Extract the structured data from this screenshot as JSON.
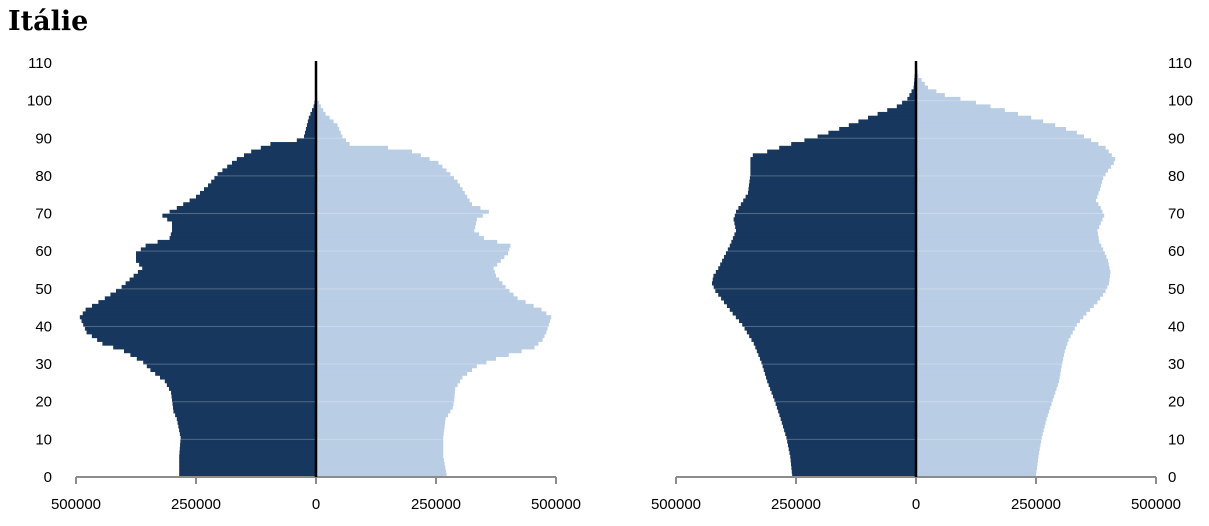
{
  "title": "Itálie",
  "chart_data": [
    {
      "type": "bar",
      "orientation": "horizontal",
      "layout": "population-pyramid",
      "age_step": 1,
      "x_ticks": [
        "500000",
        "250000",
        "0",
        "250000",
        "500000"
      ],
      "y_ticks": [
        "0",
        "10",
        "20",
        "30",
        "40",
        "50",
        "60",
        "70",
        "80",
        "90",
        "100",
        "110"
      ],
      "xlim": [
        -500000,
        500000
      ],
      "ylim": [
        0,
        110
      ],
      "y_tick_side": "left",
      "colors": {
        "left": "#17375e",
        "right": "#b9cde5"
      },
      "left_anchors": [
        [
          0,
          285000
        ],
        [
          2,
          285000
        ],
        [
          5,
          285000
        ],
        [
          10,
          282000
        ],
        [
          15,
          290000
        ],
        [
          17,
          297000
        ],
        [
          20,
          300000
        ],
        [
          22,
          302000
        ],
        [
          25,
          315000
        ],
        [
          28,
          345000
        ],
        [
          30,
          360000
        ],
        [
          33,
          400000
        ],
        [
          35,
          445000
        ],
        [
          38,
          478000
        ],
        [
          40,
          485000
        ],
        [
          42,
          492000
        ],
        [
          44,
          480000
        ],
        [
          47,
          440000
        ],
        [
          50,
          405000
        ],
        [
          53,
          380000
        ],
        [
          55,
          362000
        ],
        [
          57,
          375000
        ],
        [
          59,
          375000
        ],
        [
          61,
          355000
        ],
        [
          63,
          305000
        ],
        [
          65,
          300000
        ],
        [
          67,
          300000
        ],
        [
          69,
          320000
        ],
        [
          71,
          290000
        ],
        [
          74,
          250000
        ],
        [
          77,
          225000
        ],
        [
          80,
          205000
        ],
        [
          82,
          185000
        ],
        [
          84,
          165000
        ],
        [
          86,
          135000
        ],
        [
          88,
          95000
        ],
        [
          89,
          40000
        ],
        [
          90,
          25000
        ],
        [
          95,
          15000
        ],
        [
          98,
          5000
        ],
        [
          100,
          1500
        ],
        [
          110,
          0
        ]
      ],
      "right_anchors": [
        [
          0,
          272000
        ],
        [
          3,
          268000
        ],
        [
          5,
          265000
        ],
        [
          10,
          265000
        ],
        [
          15,
          270000
        ],
        [
          18,
          285000
        ],
        [
          20,
          288000
        ],
        [
          23,
          290000
        ],
        [
          26,
          305000
        ],
        [
          29,
          335000
        ],
        [
          31,
          375000
        ],
        [
          34,
          455000
        ],
        [
          36,
          472000
        ],
        [
          38,
          480000
        ],
        [
          40,
          485000
        ],
        [
          42,
          490000
        ],
        [
          44,
          470000
        ],
        [
          47,
          420000
        ],
        [
          50,
          395000
        ],
        [
          53,
          375000
        ],
        [
          55,
          370000
        ],
        [
          57,
          385000
        ],
        [
          59,
          400000
        ],
        [
          61,
          405000
        ],
        [
          63,
          350000
        ],
        [
          65,
          330000
        ],
        [
          68,
          335000
        ],
        [
          70,
          360000
        ],
        [
          72,
          325000
        ],
        [
          75,
          310000
        ],
        [
          78,
          295000
        ],
        [
          80,
          280000
        ],
        [
          83,
          255000
        ],
        [
          86,
          200000
        ],
        [
          87,
          150000
        ],
        [
          88,
          70000
        ],
        [
          90,
          55000
        ],
        [
          93,
          45000
        ],
        [
          96,
          20000
        ],
        [
          98,
          10000
        ],
        [
          100,
          3000
        ],
        [
          110,
          0
        ]
      ]
    },
    {
      "type": "bar",
      "orientation": "horizontal",
      "layout": "population-pyramid",
      "age_step": 1,
      "x_ticks": [
        "500000",
        "250000",
        "0",
        "250000",
        "500000"
      ],
      "y_ticks": [
        "0",
        "10",
        "20",
        "30",
        "40",
        "50",
        "60",
        "70",
        "80",
        "90",
        "100",
        "110"
      ],
      "xlim": [
        -500000,
        500000
      ],
      "ylim": [
        0,
        110
      ],
      "y_tick_side": "right",
      "colors": {
        "left": "#17375e",
        "right": "#b9cde5"
      },
      "left_anchors": [
        [
          0,
          258000
        ],
        [
          5,
          262000
        ],
        [
          10,
          270000
        ],
        [
          15,
          282000
        ],
        [
          20,
          295000
        ],
        [
          25,
          310000
        ],
        [
          30,
          322000
        ],
        [
          35,
          338000
        ],
        [
          40,
          362000
        ],
        [
          43,
          382000
        ],
        [
          46,
          400000
        ],
        [
          49,
          418000
        ],
        [
          51,
          425000
        ],
        [
          53,
          422000
        ],
        [
          55,
          412000
        ],
        [
          58,
          400000
        ],
        [
          61,
          388000
        ],
        [
          65,
          375000
        ],
        [
          68,
          380000
        ],
        [
          70,
          375000
        ],
        [
          72,
          365000
        ],
        [
          75,
          350000
        ],
        [
          80,
          345000
        ],
        [
          84,
          345000
        ],
        [
          85,
          340000
        ],
        [
          86,
          310000
        ],
        [
          88,
          260000
        ],
        [
          90,
          205000
        ],
        [
          92,
          160000
        ],
        [
          94,
          120000
        ],
        [
          96,
          80000
        ],
        [
          98,
          40000
        ],
        [
          100,
          18000
        ],
        [
          103,
          5000
        ],
        [
          110,
          0
        ]
      ],
      "right_anchors": [
        [
          0,
          250000
        ],
        [
          5,
          255000
        ],
        [
          10,
          262000
        ],
        [
          15,
          272000
        ],
        [
          20,
          285000
        ],
        [
          25,
          298000
        ],
        [
          28,
          302000
        ],
        [
          30,
          305000
        ],
        [
          33,
          310000
        ],
        [
          36,
          318000
        ],
        [
          40,
          335000
        ],
        [
          43,
          355000
        ],
        [
          46,
          378000
        ],
        [
          49,
          395000
        ],
        [
          51,
          402000
        ],
        [
          54,
          405000
        ],
        [
          57,
          400000
        ],
        [
          60,
          390000
        ],
        [
          62,
          382000
        ],
        [
          65,
          378000
        ],
        [
          67,
          385000
        ],
        [
          69,
          392000
        ],
        [
          71,
          385000
        ],
        [
          73,
          375000
        ],
        [
          76,
          383000
        ],
        [
          79,
          390000
        ],
        [
          81,
          400000
        ],
        [
          83,
          412000
        ],
        [
          84,
          415000
        ],
        [
          85,
          408000
        ],
        [
          87,
          395000
        ],
        [
          89,
          365000
        ],
        [
          91,
          335000
        ],
        [
          93,
          290000
        ],
        [
          95,
          240000
        ],
        [
          97,
          185000
        ],
        [
          99,
          125000
        ],
        [
          101,
          60000
        ],
        [
          103,
          25000
        ],
        [
          106,
          5000
        ],
        [
          110,
          0
        ]
      ]
    }
  ]
}
